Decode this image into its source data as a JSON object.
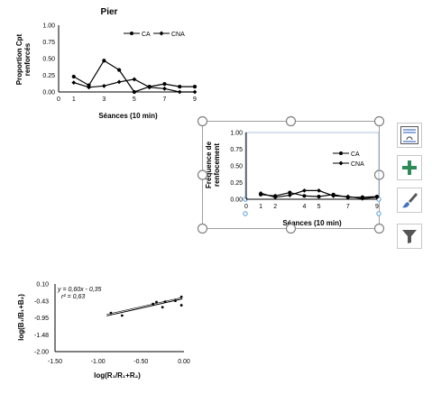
{
  "colors": {
    "series": "#000000",
    "selection_handle": "#5b9bd5",
    "plus_icon": "#2e8b57",
    "button_border": "#c8c8c8"
  },
  "side_buttons": [
    {
      "icon": "layout-options-icon",
      "label": "Layout Options"
    },
    {
      "icon": "chart-elements-icon",
      "label": "Chart Elements"
    },
    {
      "icon": "chart-styles-icon",
      "label": "Chart Styles"
    },
    {
      "icon": "chart-filters-icon",
      "label": "Chart Filters"
    }
  ],
  "chart_data": [
    {
      "type": "line",
      "title": "Pier",
      "xlabel": "Séances (10 min)",
      "ylabel_lines": [
        "Proportion Cpt",
        "renforcés"
      ],
      "xlim": [
        0,
        9
      ],
      "ylim": [
        0,
        1
      ],
      "xticks": [
        "0",
        "1",
        "3",
        "5",
        "7",
        "9"
      ],
      "yticks": [
        "0.00",
        "0.25",
        "0.50",
        "0.75",
        "1.00"
      ],
      "legend": "top-right",
      "series": [
        {
          "name": "CA",
          "x": [
            1,
            2,
            3,
            4,
            5,
            6,
            7,
            8,
            9
          ],
          "values": [
            0.23,
            0.1,
            0.47,
            0.33,
            0.0,
            0.08,
            0.12,
            0.08,
            0.08
          ]
        },
        {
          "name": "CNA",
          "x": [
            1,
            2,
            3,
            4,
            5,
            6,
            7,
            8,
            9
          ],
          "values": [
            0.14,
            0.07,
            0.09,
            0.15,
            0.19,
            0.07,
            0.05,
            0.0,
            0.0
          ]
        }
      ]
    },
    {
      "type": "line",
      "selected": true,
      "xlabel": "Séances (10 min)",
      "ylabel_lines": [
        "Fréquence de",
        "renfocement"
      ],
      "xlim": [
        0,
        9
      ],
      "ylim": [
        0,
        1
      ],
      "xticks": [
        "0",
        "1",
        "2",
        "4",
        "5",
        "7",
        "9"
      ],
      "yticks": [
        "0.00",
        "0.25",
        "0.50",
        "0.75",
        "1.00"
      ],
      "legend": "right",
      "series": [
        {
          "name": "CA",
          "x": [
            1,
            2,
            3,
            4,
            5,
            6,
            7,
            8,
            9
          ],
          "values": [
            0.07,
            0.05,
            0.1,
            0.05,
            0.04,
            0.07,
            0.03,
            0.03,
            0.04
          ]
        },
        {
          "name": "CNA",
          "x": [
            1,
            2,
            3,
            4,
            5,
            6,
            7,
            8,
            9
          ],
          "values": [
            0.09,
            0.03,
            0.06,
            0.13,
            0.13,
            0.05,
            0.04,
            0.01,
            0.03
          ]
        }
      ]
    },
    {
      "type": "scatter",
      "xlabel": "log(R₁/R₁+R₂)",
      "ylabel": "log(B₁/B₁+B₂)",
      "xlim": [
        -1.5,
        0.0
      ],
      "ylim": [
        -2.0,
        0.1
      ],
      "xticks": [
        "-1.50",
        "-1.00",
        "-0.50",
        "0.00"
      ],
      "yticks": [
        "-2.00",
        "-1.48",
        "-0.95",
        "-0.43",
        "0.10"
      ],
      "annotations": [
        "y = 0,60x - 0,35",
        "r² = 0,63"
      ],
      "trendline": {
        "slope": 0.6,
        "intercept": -0.35
      },
      "x": [
        -0.85,
        -0.72,
        -0.36,
        -0.32,
        -0.25,
        -0.22,
        -0.1,
        -0.03,
        -0.03
      ],
      "y": [
        -0.8,
        -0.88,
        -0.52,
        -0.46,
        -0.62,
        -0.45,
        -0.42,
        -0.3,
        -0.56
      ]
    }
  ]
}
